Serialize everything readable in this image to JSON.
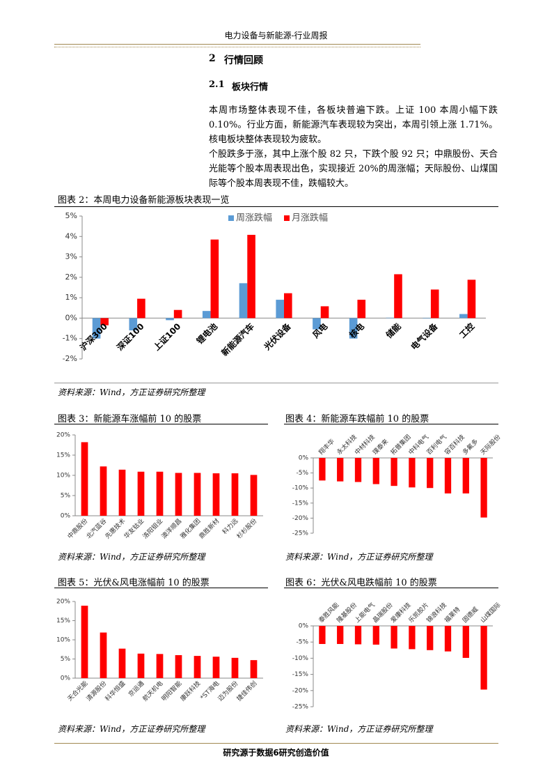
{
  "header": {
    "title": "电力设备与新能源-行业周报"
  },
  "section": {
    "number": "2",
    "title": "行情回顾"
  },
  "subsection": {
    "number": "2.1",
    "title": "板块行情"
  },
  "paragraphs": [
    "本周市场整体表现不佳，各板块普遍下跌。上证 100 本周小幅下跌 0.10%。行业方面，新能源汽车表现较为突出，本周引领上涨 1.71%。核电板块整体表现较为疲软。",
    "个股跌多于涨，其中上涨个股 82 只，下跌个股 92 只；中鼎股份、天合光能等个股本周表现出色，实现接近 20%的周涨幅；天际股份、山煤国际等个股本周表现不佳，跌幅较大。"
  ],
  "chart_data": [
    {
      "type": "bar",
      "title": "图表 2：本周电力设备新能源板块表现一览",
      "source": "资料来源：Wind，方正证券研究所整理",
      "legend": "top",
      "categories": [
        "沪深300",
        "深证100",
        "上证100",
        "锂电池",
        "新能源汽车",
        "光伏设备",
        "风电",
        "核电",
        "储能",
        "电气设备",
        "工控"
      ],
      "series": [
        {
          "name": "周涨跌幅",
          "color": "#5b9bd5",
          "values": [
            -1.0,
            -0.6,
            -0.1,
            0.35,
            1.71,
            0.9,
            -0.55,
            -1.0,
            0.02,
            -0.02,
            0.2
          ]
        },
        {
          "name": "月涨跌幅",
          "color": "#ff0000",
          "values": [
            -0.35,
            0.95,
            0.4,
            3.85,
            4.08,
            1.22,
            0.58,
            0.9,
            2.15,
            1.4,
            1.88
          ]
        }
      ],
      "ylim": [
        -2,
        5
      ],
      "yticks": [
        {
          "value": -2,
          "label": "-2%"
        },
        {
          "value": -1,
          "label": "-1%"
        },
        {
          "value": 0,
          "label": "0%"
        },
        {
          "value": 1,
          "label": "1%"
        },
        {
          "value": 2,
          "label": "2%"
        },
        {
          "value": 3,
          "label": "3%"
        },
        {
          "value": 4,
          "label": "4%"
        },
        {
          "value": 5,
          "label": "5%"
        }
      ]
    },
    {
      "type": "bar",
      "title": "图表 3：新能源车涨幅前 10 的股票",
      "source": "资料来源：Wind，方正证券研究所整理",
      "color": "#ff0000",
      "categories": [
        "中鼎股份",
        "北汽蓝谷",
        "先惠技术",
        "华友钴业",
        "洛阳钼业",
        "澳洋顺昌",
        "雅化集团",
        "鼎胜新材",
        "科力远",
        "杉杉股份"
      ],
      "values": [
        18.2,
        12.2,
        11.4,
        10.9,
        10.9,
        10.6,
        10.6,
        10.5,
        10.5,
        10.1
      ],
      "ylim": [
        0,
        20
      ],
      "yticks": [
        {
          "value": 0,
          "label": "0%"
        },
        {
          "value": 5,
          "label": "5%"
        },
        {
          "value": 10,
          "label": "10%"
        },
        {
          "value": 15,
          "label": "15%"
        },
        {
          "value": 20,
          "label": "20%"
        }
      ]
    },
    {
      "type": "bar",
      "title": "图表 4：新能源车跌幅前 10 的股票",
      "source": "资料来源：Wind，方正证券研究所整理",
      "color": "#ff0000",
      "categories": [
        "翔丰华",
        "永太科技",
        "中材科技",
        "璞泰来",
        "拓普集团",
        "中科电气",
        "百利电气",
        "容百科技",
        "多氟多",
        "天际股份"
      ],
      "values": [
        -7.5,
        -7.8,
        -8.0,
        -8.7,
        -9.3,
        -9.8,
        -10.0,
        -11.8,
        -11.8,
        -19.8
      ],
      "ylim": [
        -25,
        0
      ],
      "yticks": [
        {
          "value": -25,
          "label": "-25%"
        },
        {
          "value": -20,
          "label": "-20%"
        },
        {
          "value": -15,
          "label": "-15%"
        },
        {
          "value": -10,
          "label": "-10%"
        },
        {
          "value": -5,
          "label": "-5%"
        },
        {
          "value": 0,
          "label": "0%"
        }
      ]
    },
    {
      "type": "bar",
      "title": "图表 5：光伏&风电涨幅前 10 的股票",
      "source": "资料来源：Wind，方正证券研究所整理",
      "color": "#ff0000",
      "categories": [
        "天合光能",
        "清源股份",
        "科华恒盛",
        "京运通",
        "航天机电",
        "明阳智能",
        "康跃科技",
        "*ST海电",
        "迈为股份",
        "捷佳伟创"
      ],
      "values": [
        18.9,
        11.9,
        7.7,
        6.4,
        6.3,
        6.0,
        5.8,
        5.6,
        5.3,
        4.7
      ],
      "ylim": [
        0,
        20
      ],
      "yticks": [
        {
          "value": 0,
          "label": "0%"
        },
        {
          "value": 5,
          "label": "5%"
        },
        {
          "value": 10,
          "label": "10%"
        },
        {
          "value": 15,
          "label": "15%"
        },
        {
          "value": 20,
          "label": "20%"
        }
      ]
    },
    {
      "type": "bar",
      "title": "图表 6：光伏&风电跌幅前 10 的股票",
      "source": "资料来源：Wind，方正证券研究所整理",
      "color": "#ff0000",
      "categories": [
        "泰胜风能",
        "隆基股份",
        "上能电气",
        "晶瑞股份",
        "爱康科技",
        "乐凯胶片",
        "锦浪科技",
        "福莱特",
        "固德威",
        "山煤国际"
      ],
      "values": [
        -5.6,
        -5.6,
        -5.7,
        -5.8,
        -7.0,
        -7.2,
        -7.5,
        -7.9,
        -9.9,
        -19.7
      ],
      "ylim": [
        -25,
        0
      ],
      "yticks": [
        {
          "value": -25,
          "label": "-25%"
        },
        {
          "value": -20,
          "label": "-20%"
        },
        {
          "value": -15,
          "label": "-15%"
        },
        {
          "value": -10,
          "label": "-10%"
        },
        {
          "value": -5,
          "label": "-5%"
        },
        {
          "value": 0,
          "label": "0%"
        }
      ]
    }
  ],
  "footer": {
    "text": "研究源于数据6研究创造价值"
  }
}
